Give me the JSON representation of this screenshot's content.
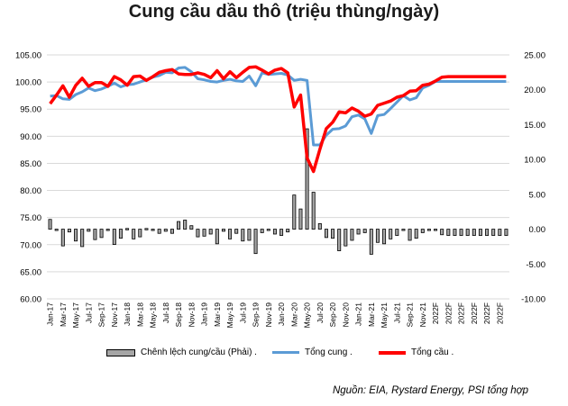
{
  "title": "Cung cầu dầu thô (triệu thùng/ngày)",
  "source": "Nguồn: EIA, Rystard Energy, PSI tổng hợp",
  "legend": {
    "bar": "Chênh lệch cung/cầu (Phải) .",
    "supply": "Tổng cung .",
    "demand": "Tổng cầu ."
  },
  "colors": {
    "supply": "#5b9bd5",
    "demand": "#ff0000",
    "bar_fill": "#a6a6a6",
    "bar_stroke": "#000000"
  },
  "chart_data": {
    "type": "line",
    "title": "Cung cầu dầu thô (triệu thùng/ngày)",
    "y_left": {
      "lim": [
        60,
        105
      ],
      "ticks": [
        "60.00",
        "65.00",
        "70.00",
        "75.00",
        "80.00",
        "85.00",
        "90.00",
        "95.00",
        "100.00",
        "105.00"
      ]
    },
    "y_right": {
      "lim": [
        -10,
        25
      ],
      "ticks": [
        "-10.00",
        "-5.00",
        "0.00",
        "5.00",
        "10.00",
        "15.00",
        "20.00",
        "25.00"
      ]
    },
    "x_tick_labels": [
      "Jan-17",
      "Mar-17",
      "May-17",
      "Jul-17",
      "Sep-17",
      "Nov-17",
      "Jan-18",
      "Mar-18",
      "May-18",
      "Jul-18",
      "Sep-18",
      "Nov-18",
      "Jan-19",
      "Mar-19",
      "May-19",
      "Jul-19",
      "Sep-19",
      "Nov-19",
      "Jan-20",
      "Mar-20",
      "May-20",
      "Jul-20",
      "Sep-20",
      "Nov-20",
      "Jan-21",
      "Mar-21",
      "May-21",
      "Jul-21",
      "Sep-21",
      "Nov-21",
      "2022F",
      "2022F",
      "2022F",
      "2022F",
      "2022F",
      "2022F"
    ],
    "gridlines": true,
    "legend_position": "bottom",
    "series": [
      {
        "name": "Tổng cung .",
        "axis": "left",
        "type": "line",
        "values": [
          97.4,
          97.5,
          96.9,
          96.8,
          97.7,
          98.2,
          98.9,
          98.4,
          98.7,
          99.2,
          99.8,
          99.1,
          99.5,
          99.6,
          100.0,
          100.4,
          100.9,
          101.2,
          101.8,
          101.7,
          102.6,
          102.7,
          101.9,
          100.6,
          100.4,
          100.1,
          100.0,
          100.3,
          100.5,
          100.2,
          100.1,
          101.1,
          99.3,
          101.7,
          101.4,
          101.5,
          101.6,
          101.3,
          100.3,
          100.5,
          100.3,
          88.4,
          88.4,
          90.2,
          91.3,
          91.4,
          91.9,
          93.6,
          93.9,
          93.2,
          90.5,
          93.8,
          94.0,
          95.1,
          96.3,
          97.5,
          96.7,
          97.1,
          98.9,
          99.4,
          100.1,
          100.1,
          100.1,
          100.1,
          100.1,
          100.1,
          100.1,
          100.1,
          100.1,
          100.1,
          100.1,
          100.1
        ]
      },
      {
        "name": "Tổng cầu .",
        "axis": "left",
        "type": "line",
        "values": [
          96.0,
          97.6,
          99.3,
          97.2,
          99.4,
          100.7,
          99.2,
          99.9,
          99.9,
          99.2,
          101.0,
          100.4,
          99.4,
          101.0,
          101.1,
          100.3,
          101.0,
          101.8,
          102.1,
          102.3,
          101.5,
          101.4,
          101.4,
          101.7,
          101.4,
          100.8,
          102.1,
          100.6,
          101.9,
          100.8,
          101.8,
          102.7,
          102.8,
          102.2,
          101.5,
          102.2,
          102.5,
          101.7,
          95.4,
          97.6,
          86.0,
          83.5,
          87.6,
          91.4,
          92.6,
          94.5,
          94.3,
          95.2,
          94.6,
          93.7,
          94.1,
          95.7,
          96.1,
          96.5,
          97.2,
          97.5,
          98.3,
          98.4,
          99.4,
          99.6,
          100.2,
          100.9,
          101.0,
          101.0,
          101.0,
          101.0,
          101.0,
          101.0,
          101.0,
          101.0,
          101.0,
          101.0
        ]
      },
      {
        "name": "Chênh lệch cung/cầu (Phải) .",
        "axis": "right",
        "type": "bar",
        "values": [
          1.4,
          -0.1,
          -2.4,
          -0.4,
          -1.7,
          -2.5,
          -0.3,
          -1.5,
          -1.2,
          -0.1,
          -2.2,
          -1.3,
          0.1,
          -1.4,
          -1.1,
          0.1,
          -0.1,
          -0.6,
          -0.3,
          -0.6,
          1.1,
          1.3,
          0.5,
          -1.1,
          -1.0,
          -0.7,
          -2.1,
          -0.3,
          -1.4,
          -0.6,
          -1.7,
          -1.6,
          -3.5,
          -0.5,
          -0.1,
          -0.7,
          -0.9,
          -0.4,
          4.9,
          2.9,
          14.4,
          5.3,
          0.8,
          -1.2,
          -1.3,
          -3.1,
          -2.4,
          -1.6,
          -0.7,
          -0.5,
          -3.6,
          -1.9,
          -2.1,
          -1.4,
          -0.9,
          -0.1,
          -1.6,
          -1.3,
          -0.5,
          -0.2,
          -0.1,
          -0.8,
          -0.9,
          -0.9,
          -0.9,
          -0.9,
          -0.9,
          -0.9,
          -0.9,
          -0.9,
          -0.9,
          -0.9
        ]
      }
    ]
  }
}
